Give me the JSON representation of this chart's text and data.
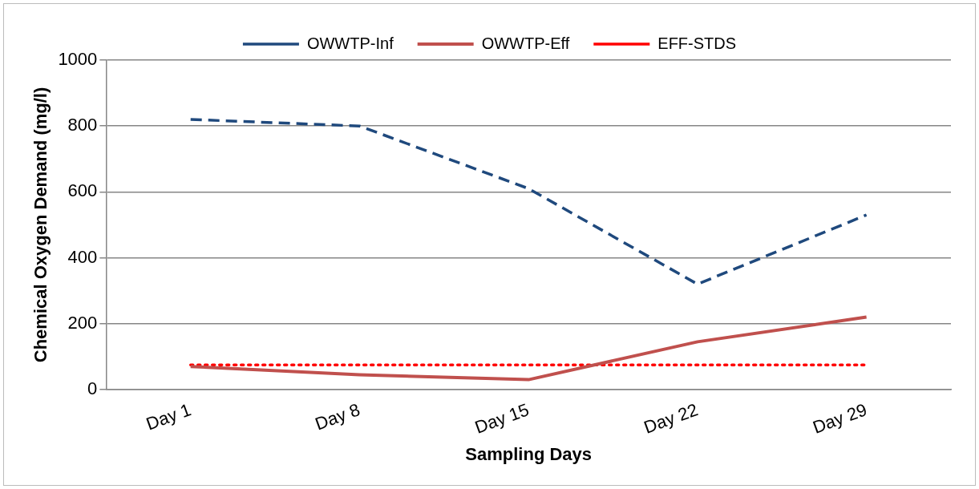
{
  "chart_data": {
    "type": "line",
    "xlabel": "Sampling Days",
    "ylabel": "Chemical Oxygen Demand (mg/l)",
    "categories": [
      "Day 1",
      "Day 8",
      "Day 15",
      "Day 22",
      "Day 29"
    ],
    "series": [
      {
        "name": "OWWTP-Inf",
        "color": "#1f497d",
        "line_style": "dashed",
        "values": [
          820,
          800,
          610,
          320,
          530
        ]
      },
      {
        "name": "OWWTP-Eff",
        "color": "#c0504d",
        "line_style": "solid",
        "values": [
          70,
          45,
          30,
          145,
          220
        ]
      },
      {
        "name": "EFF-STDS",
        "color": "#ff0000",
        "line_style": "dotted",
        "values": [
          75,
          75,
          75,
          75,
          75
        ]
      }
    ],
    "ylim": [
      0,
      1000
    ],
    "yticks": [
      0,
      200,
      400,
      600,
      800,
      1000
    ],
    "grid": "y",
    "legend": "top",
    "marker": "none"
  }
}
